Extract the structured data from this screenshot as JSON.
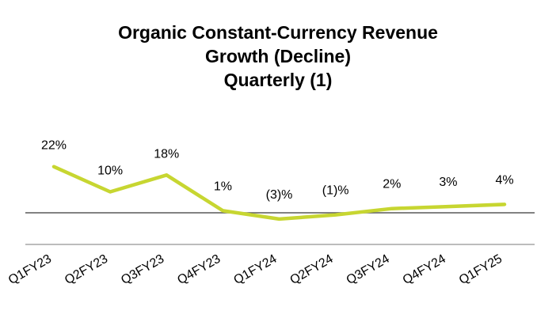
{
  "chart_data": {
    "type": "line",
    "title": [
      "Organic Constant-Currency Revenue",
      "Growth (Decline)",
      "Quarterly (1)"
    ],
    "categories": [
      "Q1FY23",
      "Q2FY23",
      "Q3FY23",
      "Q4FY23",
      "Q1FY24",
      "Q2FY24",
      "Q3FY24",
      "Q4FY24",
      "Q1FY25"
    ],
    "series": [
      {
        "name": "Organic constant-currency revenue growth",
        "values": [
          22,
          10,
          18,
          1,
          -3,
          -1,
          2,
          3,
          4
        ],
        "labels": [
          "22%",
          "10%",
          "18%",
          "1%",
          "(3)%",
          "(1)%",
          "2%",
          "3%",
          "4%"
        ],
        "color": "#c7d631"
      }
    ],
    "xlabel": "",
    "ylabel": "",
    "ylim": [
      -10,
      30
    ],
    "grid": false,
    "legend": "none",
    "zero_line_color": "#595959",
    "axis_line_color": "#a6a6a6"
  }
}
